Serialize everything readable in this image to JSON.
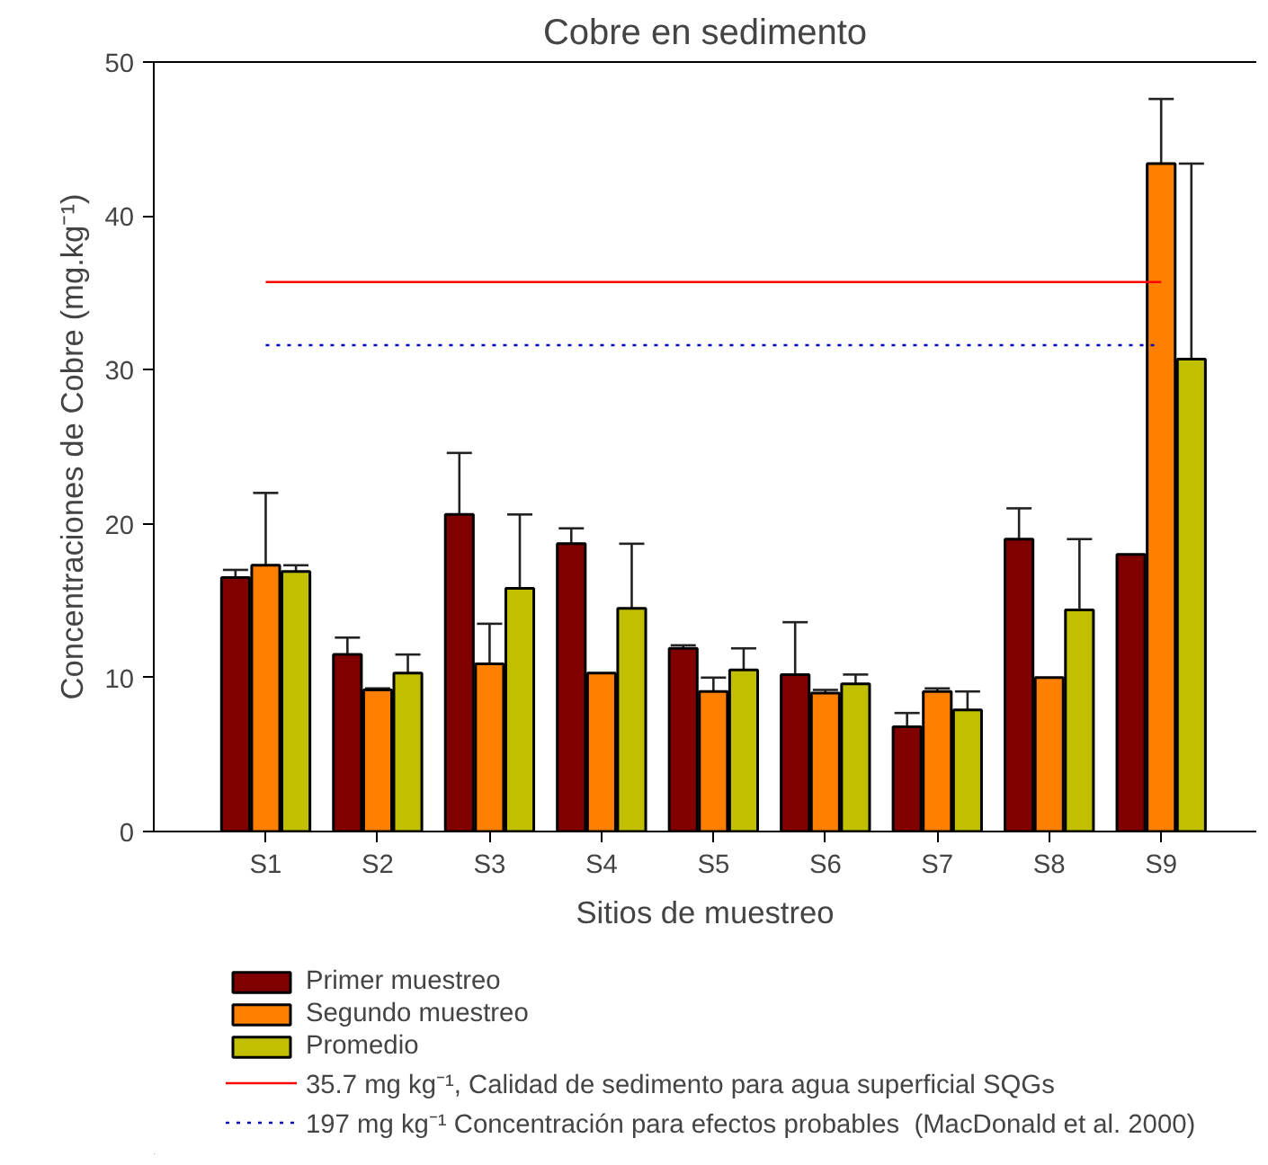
{
  "chart_data": {
    "type": "bar",
    "title": "Cobre en sedimento",
    "xlabel": "Sitios de muestreo",
    "ylabel": "Concentraciones de Cobre (mg.kg⁻¹)",
    "categories": [
      "S1",
      "S2",
      "S3",
      "S4",
      "S5",
      "S6",
      "S7",
      "S8",
      "S9"
    ],
    "series": [
      {
        "name": "Primer muestreo",
        "color": "#800000",
        "values": [
          16.5,
          11.5,
          20.6,
          18.7,
          11.9,
          10.2,
          6.8,
          19.0,
          18.0
        ],
        "errors": [
          [
            16.5,
            17.0
          ],
          [
            11.5,
            12.6
          ],
          [
            20.6,
            24.6
          ],
          [
            18.7,
            19.7
          ],
          [
            11.9,
            12.1
          ],
          [
            10.2,
            13.6
          ],
          [
            6.8,
            7.7
          ],
          [
            19.0,
            21.0
          ],
          null
        ]
      },
      {
        "name": "Segundo muestreo",
        "color": "#ff8000",
        "values": [
          17.3,
          9.2,
          10.9,
          10.3,
          9.1,
          9.0,
          9.1,
          10.0,
          43.4
        ],
        "errors": [
          [
            17.3,
            22.0
          ],
          [
            9.2,
            9.3
          ],
          [
            10.9,
            13.5
          ],
          null,
          [
            9.1,
            10.0
          ],
          [
            9.0,
            9.2
          ],
          [
            9.1,
            9.3
          ],
          null,
          [
            43.4,
            47.6
          ]
        ]
      },
      {
        "name": "Promedio",
        "color": "#c0c000",
        "values": [
          16.9,
          10.3,
          15.8,
          14.5,
          10.5,
          9.6,
          7.9,
          14.4,
          30.7
        ],
        "errors": [
          [
            16.9,
            17.3
          ],
          [
            10.3,
            11.5
          ],
          [
            15.8,
            20.6
          ],
          [
            14.5,
            18.7
          ],
          [
            10.5,
            11.9
          ],
          [
            9.6,
            10.2
          ],
          [
            7.9,
            9.1
          ],
          [
            14.4,
            19.0
          ],
          [
            30.7,
            43.4
          ]
        ]
      }
    ],
    "ref_lines": [
      {
        "axis": "y",
        "value": 35.7,
        "label": "35.7 mg kg⁻¹, Calidad de sedimento para agua superficial SQGs",
        "color": "#ff0000",
        "line_style": "solid"
      },
      {
        "axis": "y",
        "value": 31.6,
        "label": "197 mg kg⁻¹ Concentración para efectos probables  (MacDonald et al. 2000)",
        "color": "#0000c0",
        "line_style": "dotted"
      }
    ],
    "ylim": [
      0,
      50
    ],
    "yticks": [
      0,
      10,
      20,
      30,
      40,
      50
    ],
    "grid": false,
    "legend": "bottom"
  }
}
